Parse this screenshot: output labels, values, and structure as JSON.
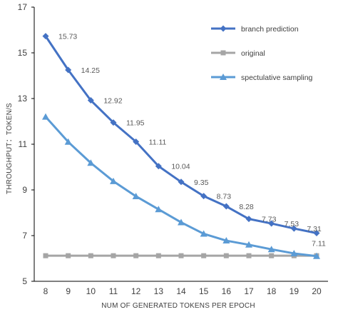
{
  "chart_data": {
    "type": "line",
    "title": "",
    "xlabel": "NUM OF GENERATED TOKENS PER EPOCH",
    "ylabel": "THROUGHPUT：TOKEN/S",
    "x": [
      8,
      9,
      10,
      11,
      12,
      13,
      14,
      15,
      16,
      17,
      18,
      19,
      20
    ],
    "ylim": [
      5,
      17
    ],
    "yticks": [
      5,
      7,
      9,
      11,
      13,
      15,
      17
    ],
    "grid": false,
    "legend_position": "top-right",
    "series": [
      {
        "name": "branch prediction",
        "color": "#4472C4",
        "marker": "diamond",
        "values": [
          15.73,
          14.25,
          12.92,
          11.95,
          11.11,
          10.04,
          9.35,
          8.73,
          8.28,
          7.73,
          7.53,
          7.31,
          7.11
        ],
        "data_labels": [
          "15.73",
          "14.25",
          "12.92",
          "11.95",
          "11.11",
          "10.04",
          "9.35",
          "8.73",
          "8.28",
          "7.73",
          "7.53",
          "7.31",
          "7.11"
        ]
      },
      {
        "name": "original",
        "color": "#A5A5A5",
        "marker": "square",
        "values": [
          6.12,
          6.12,
          6.12,
          6.12,
          6.12,
          6.12,
          6.12,
          6.12,
          6.12,
          6.12,
          6.12,
          6.12,
          6.12
        ]
      },
      {
        "name": "spectulative sampling",
        "color": "#5B9BD5",
        "marker": "triangle",
        "values": [
          12.2,
          11.1,
          10.18,
          9.38,
          8.72,
          8.15,
          7.58,
          7.08,
          6.78,
          6.6,
          6.4,
          6.22,
          6.1
        ]
      }
    ]
  }
}
